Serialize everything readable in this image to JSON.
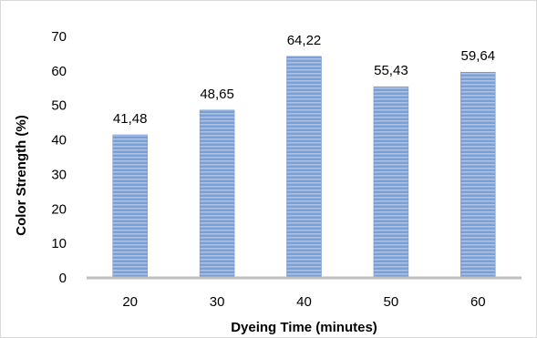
{
  "chart_data": {
    "type": "bar",
    "title": "",
    "xlabel": "Dyeing Time (minutes)",
    "ylabel": "Color Strength (%)",
    "categories": [
      "20",
      "30",
      "40",
      "50",
      "60"
    ],
    "values": [
      41.48,
      48.65,
      64.22,
      55.43,
      59.64
    ],
    "value_labels": [
      "41,48",
      "48,65",
      "64,22",
      "55,43",
      "59,64"
    ],
    "ylim": [
      0,
      70
    ],
    "y_ticks": [
      0,
      10,
      20,
      30,
      40,
      50,
      60,
      70
    ],
    "grid": false,
    "legend": "none",
    "bar_color": "#7a9fd4",
    "bar_stripe_color": "#a9c2e6",
    "axis_color": "#bfbfbf"
  }
}
